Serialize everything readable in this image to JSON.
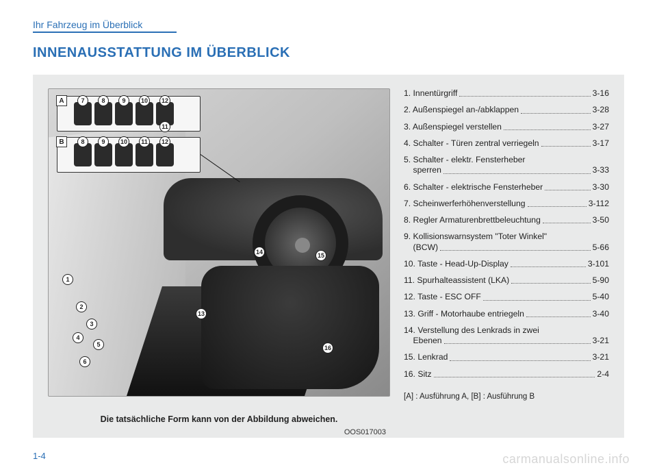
{
  "header": "Ihr Fahrzeug im Überblick",
  "title": "INNENAUSSTATTUNG IM ÜBERBLICK",
  "figure": {
    "code": "OOS017003",
    "caption": "Die tatsächliche Form kann von der Abbildung abweichen.",
    "insets": {
      "a_tag": "A",
      "b_tag": "B",
      "a_nums": [
        "7",
        "8",
        "9",
        "10",
        "12"
      ],
      "a_nums_extra": "11",
      "b_nums": [
        "8",
        "9",
        "10",
        "11",
        "12"
      ]
    },
    "floating_nums": {
      "n1": "1",
      "n2": "2",
      "n3": "3",
      "n4": "4",
      "n5": "5",
      "n6": "6",
      "n13": "13",
      "n14": "14",
      "n15": "15",
      "n16": "16"
    }
  },
  "list": [
    {
      "label": "1. Innentürgriff",
      "page": "3-16"
    },
    {
      "label": "2. Außenspiegel an-/abklappen",
      "page": "3-28"
    },
    {
      "label": "3. Außenspiegel verstellen",
      "page": "3-27"
    },
    {
      "label": "4. Schalter - Türen zentral verriegeln",
      "page": "3-17"
    },
    {
      "label": "5. Schalter - elektr. Fensterheber",
      "label2": "sperren",
      "page": "3-33",
      "wrap": true
    },
    {
      "label": "6. Schalter - elektrische Fensterheber",
      "page": "3-30"
    },
    {
      "label": "7. Scheinwerferhöhenverstellung",
      "page": "3-112"
    },
    {
      "label": "8. Regler Armaturenbrettbeleuchtung",
      "page": "3-50"
    },
    {
      "label": "9. Kollisionswarnsystem \"Toter Winkel\"",
      "label2": "(BCW)",
      "page": "5-66",
      "wrap": true
    },
    {
      "label": "10. Taste - Head-Up-Display",
      "page": "3-101"
    },
    {
      "label": "11. Spurhalteassistent (LKA)",
      "page": "5-90"
    },
    {
      "label": "12. Taste - ESC OFF",
      "page": "5-40"
    },
    {
      "label": "13. Griff - Motorhaube entriegeln",
      "page": "3-40"
    },
    {
      "label": "14. Verstellung des Lenkrads in zwei",
      "label2": "Ebenen",
      "page": "3-21",
      "wrap": true
    },
    {
      "label": "15. Lenkrad",
      "page": "3-21"
    },
    {
      "label": "16. Sitz",
      "page": "2-4"
    }
  ],
  "note": "[A] : Ausführung A, [B] : Ausführung B",
  "page_num": "1-4",
  "watermark": "carmanualsonline.info",
  "colors": {
    "accent": "#2a6fb5",
    "panel_bg": "#e9eaea"
  }
}
